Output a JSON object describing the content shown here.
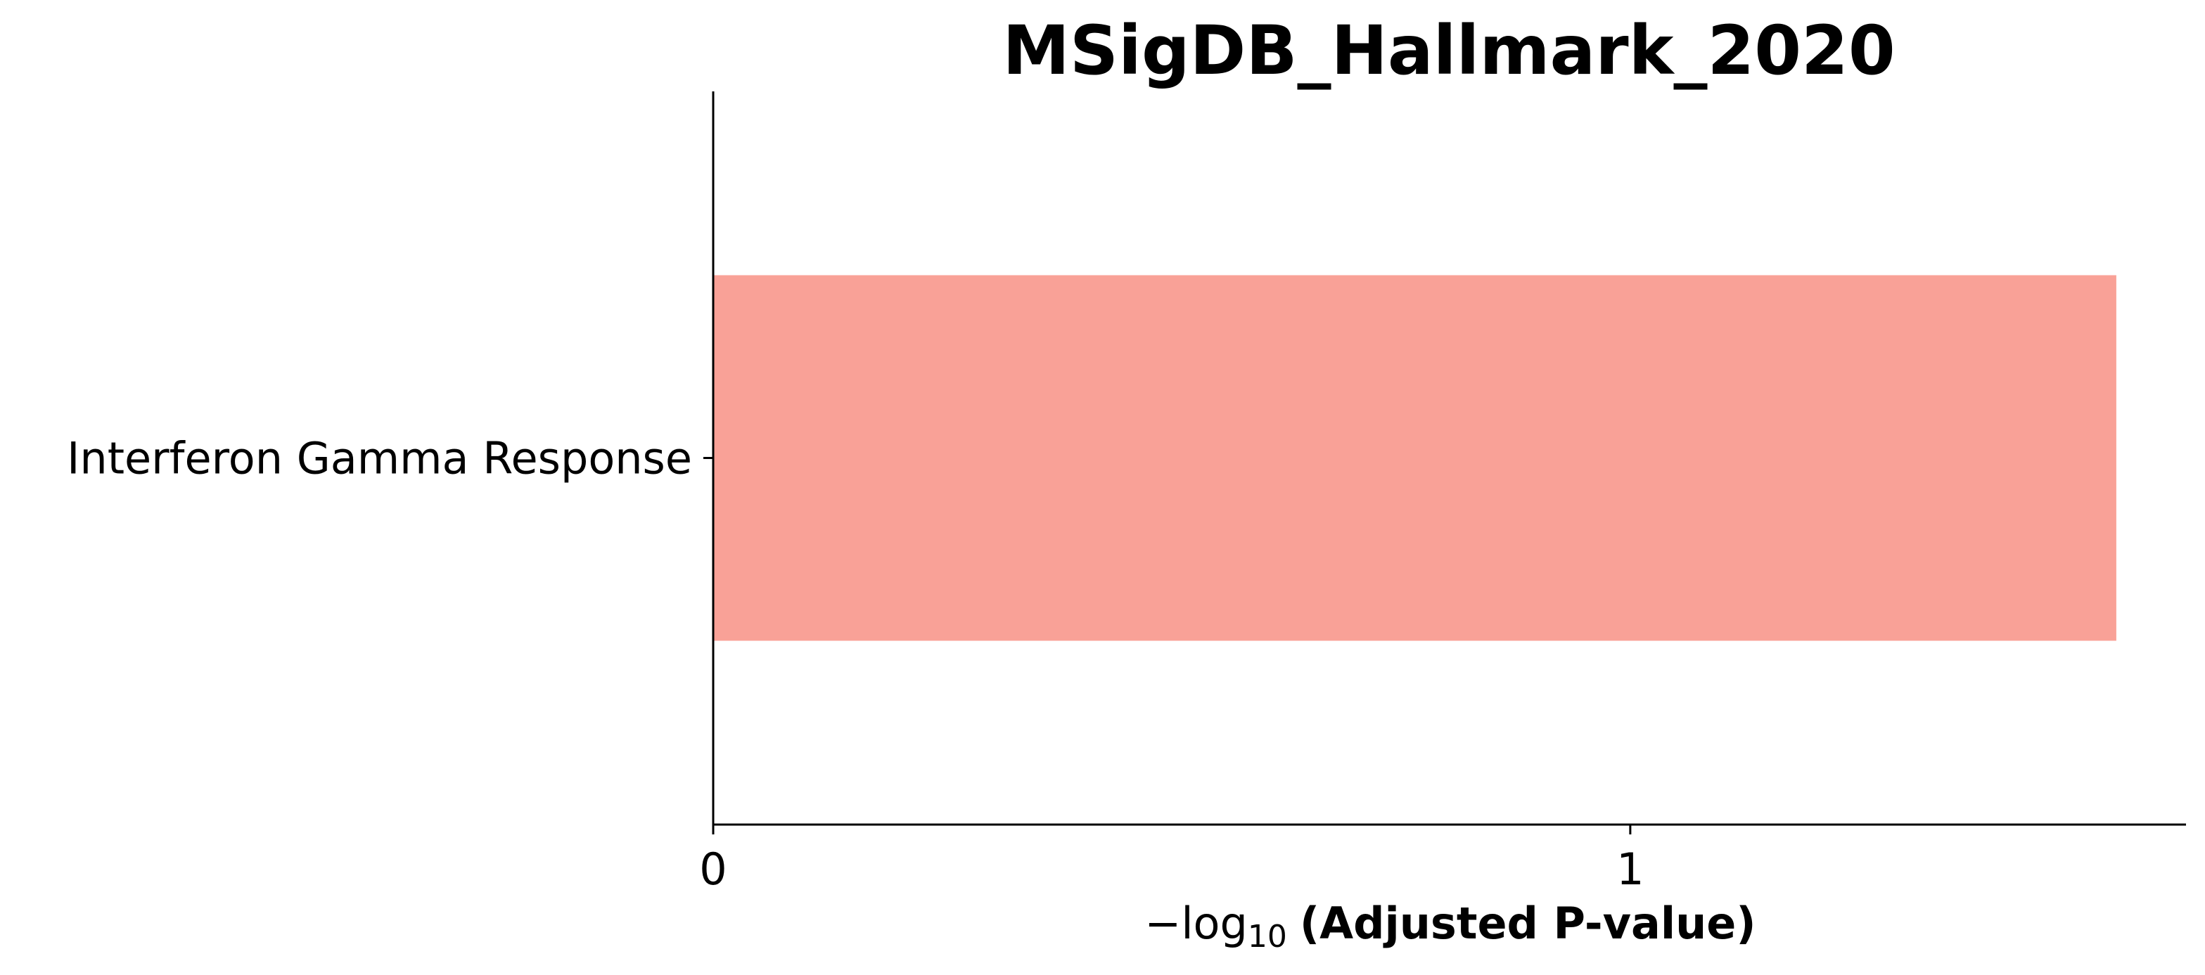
{
  "chart_data": {
    "type": "bar",
    "orientation": "horizontal",
    "title": "MSigDB_Hallmark_2020",
    "categories": [
      "Interferon Gamma Response"
    ],
    "values": [
      1.53
    ],
    "xlabel": {
      "prefix": "−log",
      "subscript": "10",
      "main": "(Adjusted P-value)"
    },
    "ylabel": "",
    "xlim": [
      0,
      1.606
    ],
    "xticks": [
      0,
      1
    ],
    "xtick_labels": [
      "0",
      "1"
    ],
    "bar_color": "#F9A197",
    "grid": false,
    "legend": "none"
  }
}
